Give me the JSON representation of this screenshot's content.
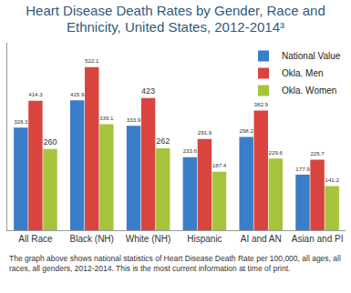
{
  "chart_data": {
    "type": "bar",
    "title": "Heart Disease Death Rates by Gender, Race and Ethnicity, United States, 2012-2014³",
    "annotations": [
      "The graph above shows national statistics of Heart Disease Death Rate per 100,000, all ages, all races, all genders, 2012-2014. This is the most current information at time of print."
    ],
    "categories": [
      "All Race",
      "Black (NH)",
      "White (NH)",
      "Hispanic",
      "AI and AN",
      "Asian and PI"
    ],
    "series": [
      {
        "name": "National Value",
        "color": "#3a7dc9",
        "values": [
          328.3,
          415.9,
          333.9,
          233.6,
          298.2,
          177.9
        ]
      },
      {
        "name": "Okla. Men",
        "color": "#d9443e",
        "values": [
          414.3,
          522.1,
          423,
          291.9,
          382.9,
          225.7
        ]
      },
      {
        "name": "Okla. Women",
        "color": "#a6c43c",
        "values": [
          260,
          339.1,
          262,
          187.4,
          229.6,
          141.2
        ]
      }
    ],
    "ylim": [
      0,
      600
    ],
    "grid": false,
    "legend": "top-right",
    "data_labels": true,
    "tick_labels": "x"
  }
}
